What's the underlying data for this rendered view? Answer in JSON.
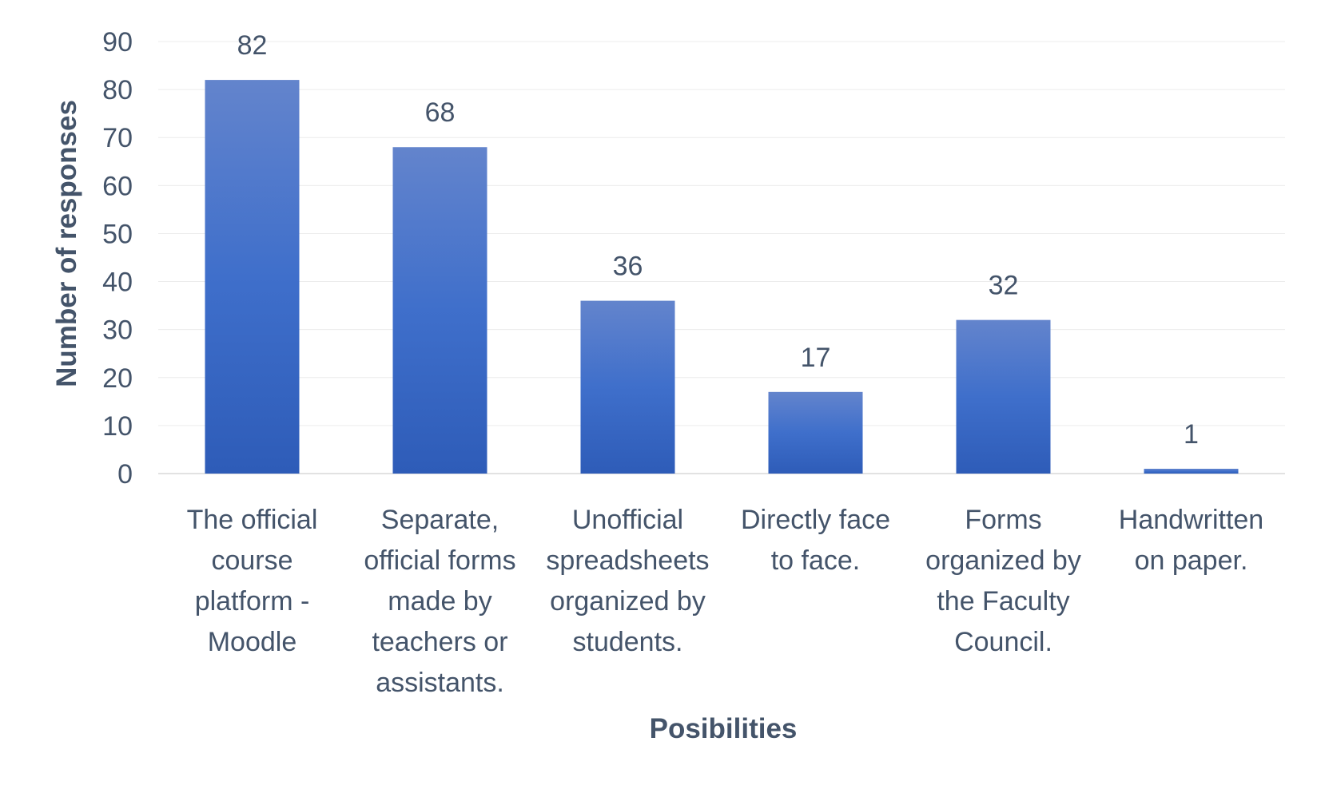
{
  "chart_data": {
    "type": "bar",
    "title": "",
    "xlabel": "Posibilities",
    "ylabel": "Number of responses",
    "ylim": [
      0,
      90
    ],
    "yticks": [
      0,
      10,
      20,
      30,
      40,
      50,
      60,
      70,
      80,
      90
    ],
    "grid": true,
    "legend": "none",
    "bar_color": "#3a67c4",
    "categories": [
      [
        "The official",
        "course",
        "platform -",
        "Moodle"
      ],
      [
        "Separate,",
        "official forms",
        "made by",
        "teachers or",
        "assistants."
      ],
      [
        "Unofficial",
        "spreadsheets",
        "organized by",
        "students."
      ],
      [
        "Directly face",
        "to face."
      ],
      [
        "Forms",
        "organized by",
        "the Faculty",
        "Council."
      ],
      [
        "Handwritten",
        "on paper."
      ]
    ],
    "values": [
      82,
      68,
      36,
      17,
      32,
      1
    ]
  }
}
